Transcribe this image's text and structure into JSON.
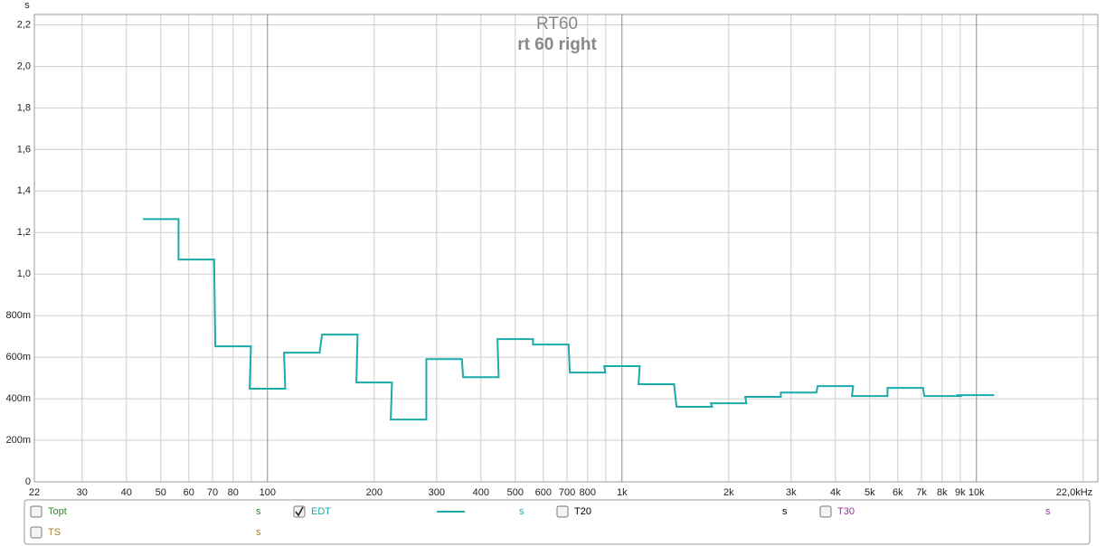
{
  "chart_data": {
    "type": "step",
    "title": "RT60",
    "subtitle": "rt 60 right",
    "y_label": "s",
    "x": [
      50,
      63,
      80,
      100,
      125,
      160,
      200,
      250,
      315,
      400,
      500,
      630,
      800,
      1000,
      1250,
      1600,
      2000,
      2500,
      3150,
      4000,
      5000,
      6300,
      8000,
      10000
    ],
    "series": [
      {
        "name": "Topt",
        "color": "#2e8b2e",
        "unit": "s",
        "checked": false
      },
      {
        "name": "EDT",
        "color": "#1aabab",
        "unit": "s",
        "checked": true,
        "values": [
          1.265,
          1.07,
          0.652,
          0.448,
          0.622,
          0.709,
          0.478,
          0.3,
          0.591,
          0.504,
          0.687,
          0.661,
          0.526,
          0.557,
          0.47,
          0.361,
          0.378,
          0.409,
          0.43,
          0.461,
          0.413,
          0.452,
          0.413,
          0.417
        ]
      },
      {
        "name": "T20",
        "color": "#000000",
        "unit": "s",
        "checked": false
      },
      {
        "name": "T30",
        "color": "#9b2d9b",
        "unit": "s",
        "checked": false
      },
      {
        "name": "TS",
        "color": "#a08020",
        "unit": "s",
        "checked": false
      }
    ],
    "log_x": true,
    "grid": true,
    "xlim": [
      22,
      22000
    ],
    "xticks": [
      22,
      30,
      40,
      50,
      60,
      70,
      80,
      100,
      200,
      300,
      400,
      500,
      600,
      700,
      800,
      {
        "value": 1000,
        "label": "1k"
      },
      {
        "value": 2000,
        "label": "2k"
      },
      {
        "value": 3000,
        "label": "3k"
      },
      {
        "value": 4000,
        "label": "4k"
      },
      {
        "value": 5000,
        "label": "5k"
      },
      {
        "value": 6000,
        "label": "6k"
      },
      {
        "value": 7000,
        "label": "7k"
      },
      {
        "value": 8000,
        "label": "8k"
      },
      {
        "value": 9000,
        "label": "9k"
      },
      {
        "value": 10000,
        "label": "10k"
      },
      {
        "value": 22000,
        "label": "22,0kHz"
      }
    ],
    "minor_xticks": [
      90,
      900,
      20000
    ],
    "ylim": [
      0,
      2.25
    ],
    "yticks": [
      0,
      {
        "value": 0.2,
        "label": "200m"
      },
      {
        "value": 0.4,
        "label": "400m"
      },
      {
        "value": 0.6,
        "label": "600m"
      },
      {
        "value": 0.8,
        "label": "800m"
      },
      {
        "value": 1.0,
        "label": "1,0"
      },
      {
        "value": 1.2,
        "label": "1,2"
      },
      {
        "value": 1.4,
        "label": "1,4"
      },
      {
        "value": 1.6,
        "label": "1,6"
      },
      {
        "value": 1.8,
        "label": "1,8"
      },
      {
        "value": 2.0,
        "label": "2,0"
      },
      {
        "value": 2.2,
        "label": "2,2"
      }
    ]
  }
}
